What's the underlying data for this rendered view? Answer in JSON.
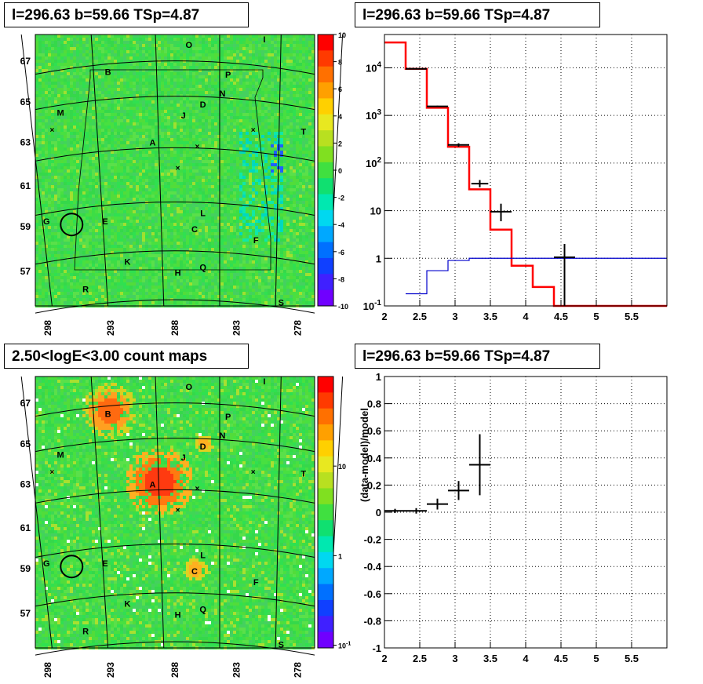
{
  "panels": {
    "tl_title": "l=296.63 b=59.66 TSp=4.87",
    "tr_title": "l=296.63 b=59.66 TSp=4.87",
    "bl_title": "2.50<logE<3.00 count maps",
    "br_title": "l=296.63 b=59.66 TSp=4.87"
  },
  "chart_data": [
    {
      "type": "heatmap",
      "id": "residual-map",
      "title": "l=296.63 b=59.66 TSp=4.87",
      "x_ticks": [
        "298",
        "293",
        "288",
        "283",
        "278"
      ],
      "y_ticks": [
        "67",
        "65",
        "63",
        "61",
        "59",
        "57"
      ],
      "colorbar_ticks": [
        "10",
        "8",
        "6",
        "4",
        "2",
        "0",
        "-2",
        "-4",
        "-6",
        "-8",
        "-10"
      ],
      "zlim": [
        -10,
        10
      ],
      "source_labels": [
        "O",
        "I",
        "B",
        "P",
        "N",
        "D",
        "M",
        "J",
        "T",
        "A",
        "G",
        "E",
        "L",
        "C",
        "F",
        "K",
        "H",
        "Q",
        "R",
        "S"
      ],
      "colors": {
        "background": "#3ddd45",
        "palette": [
          "#7a00ff",
          "#0040ff",
          "#00c8ff",
          "#00e6a0",
          "#30d040",
          "#60e030",
          "#b8e020",
          "#ffd000",
          "#ff7000",
          "#ff0000"
        ]
      }
    },
    {
      "type": "line",
      "id": "spectrum",
      "title": "l=296.63 b=59.66 TSp=4.87",
      "xlabel": "",
      "ylabel": "",
      "xlim": [
        2,
        6
      ],
      "ylog": true,
      "ylim": [
        0.1,
        50000
      ],
      "x_ticks": [
        "2",
        "2.5",
        "3",
        "3.5",
        "4",
        "4.5",
        "5",
        "5.5"
      ],
      "y_ticks": [
        "10^-1",
        "1",
        "10",
        "10^2",
        "10^3",
        "10^4"
      ],
      "grid": true,
      "series": [
        {
          "style": "step",
          "color": "#ff0000",
          "bin_edges": [
            2.0,
            2.3,
            2.6,
            2.9,
            3.2,
            3.5,
            3.8,
            4.1,
            4.4,
            4.7,
            5.0,
            5.3,
            5.6,
            6.0
          ],
          "values": [
            34000,
            9500,
            1450,
            220,
            28,
            4,
            0.7,
            0.25,
            0.1,
            0.1,
            0.1,
            0.1,
            0.1
          ]
        },
        {
          "style": "step",
          "color": "#0000cc",
          "bin_edges": [
            2.3,
            2.6,
            2.9,
            3.2,
            3.5,
            3.8,
            4.1,
            4.4,
            4.7,
            5.0,
            5.3,
            5.6,
            6.0
          ],
          "values": [
            0.18,
            0.55,
            0.9,
            1.0,
            1.0,
            1.0,
            1.0,
            1.0,
            1.0,
            1.0,
            1.0,
            1.0
          ]
        },
        {
          "style": "errorbar",
          "color": "#000000",
          "points": [
            {
              "x": 2.45,
              "xerr": 0.15,
              "y": 9500,
              "yerr": [
                9400,
                9600
              ]
            },
            {
              "x": 2.75,
              "xerr": 0.15,
              "y": 1550,
              "yerr": [
                1500,
                1600
              ]
            },
            {
              "x": 3.05,
              "xerr": 0.15,
              "y": 240,
              "yerr": [
                220,
                260
              ]
            },
            {
              "x": 3.35,
              "xerr": 0.12,
              "y": 37,
              "yerr": [
                31,
                44
              ]
            },
            {
              "x": 3.65,
              "xerr": 0.15,
              "y": 9.5,
              "yerr": [
                6,
                14
              ]
            },
            {
              "x": 4.55,
              "xerr": 0.15,
              "y": 1.05,
              "yerr": [
                0.1,
                2
              ]
            }
          ]
        }
      ]
    },
    {
      "type": "heatmap",
      "id": "count-map",
      "title": "2.50<logE<3.00 count maps",
      "x_ticks": [
        "298",
        "293",
        "288",
        "283",
        "278"
      ],
      "y_ticks": [
        "67",
        "65",
        "63",
        "61",
        "59",
        "57"
      ],
      "colorbar_ticks": [
        "10",
        "1",
        "10^-1"
      ],
      "zlog": true,
      "source_labels": [
        "O",
        "I",
        "B",
        "P",
        "N",
        "D",
        "M",
        "J",
        "T",
        "A",
        "G",
        "E",
        "L",
        "C",
        "F",
        "K",
        "H",
        "Q",
        "R",
        "S"
      ],
      "bright_sources": [
        "A",
        "B",
        "C",
        "D"
      ]
    },
    {
      "type": "scatter",
      "id": "residual-ratio",
      "title": "l=296.63 b=59.66 TSp=4.87",
      "xlabel": "",
      "ylabel": "(data-model)/model",
      "xlim": [
        2,
        6
      ],
      "ylim": [
        -1,
        1
      ],
      "x_ticks": [
        "2",
        "2.5",
        "3",
        "3.5",
        "4",
        "4.5",
        "5",
        "5.5"
      ],
      "y_ticks": [
        "1",
        "0.8",
        "0.6",
        "0.4",
        "0.2",
        "0",
        "-0.2",
        "-0.4",
        "-0.6",
        "-0.8",
        "-1"
      ],
      "grid": true,
      "points": [
        {
          "x": 2.15,
          "xerr": 0.15,
          "y": 0.01,
          "yerr": 0.015
        },
        {
          "x": 2.45,
          "xerr": 0.15,
          "y": 0.01,
          "yerr": 0.02
        },
        {
          "x": 2.75,
          "xerr": 0.15,
          "y": 0.06,
          "yerr": 0.04
        },
        {
          "x": 3.05,
          "xerr": 0.15,
          "y": 0.16,
          "yerr": 0.07
        },
        {
          "x": 3.35,
          "xerr": 0.15,
          "y": 0.35,
          "yerr": 0.225
        }
      ]
    }
  ]
}
